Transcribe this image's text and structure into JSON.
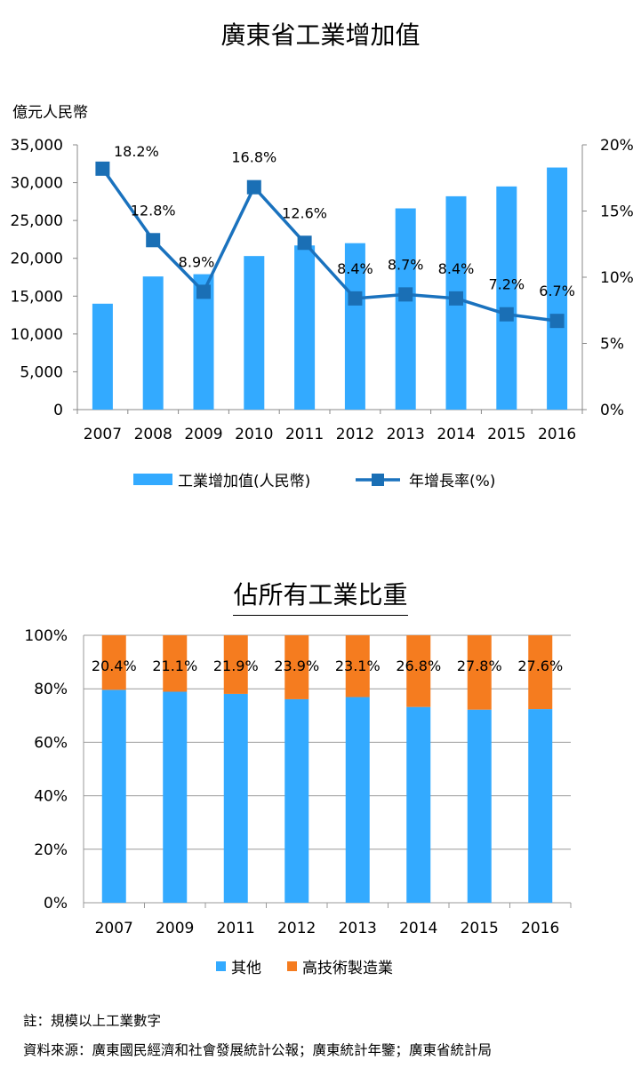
{
  "chart_data": [
    {
      "type": "bar",
      "title": "廣東省工業增加值",
      "ylabel": "億元人民幣",
      "categories": [
        "2007",
        "2008",
        "2009",
        "2010",
        "2011",
        "2012",
        "2013",
        "2014",
        "2015",
        "2016"
      ],
      "ylim": [
        0,
        35000
      ],
      "y2lim": [
        0,
        20
      ],
      "yticks": [
        "0",
        "5,000",
        "10,000",
        "15,000",
        "20,000",
        "25,000",
        "30,000",
        "35,000"
      ],
      "y2ticks": [
        "0%",
        "5%",
        "10%",
        "15%",
        "20%"
      ],
      "series": [
        {
          "name": "工業增加值(人民幣)",
          "type": "bar",
          "axis": "left",
          "color": "#33aaff",
          "values": [
            14000,
            17600,
            17900,
            20300,
            21700,
            22000,
            26600,
            28200,
            29500,
            32000
          ]
        },
        {
          "name": "年增長率(%)",
          "type": "line",
          "axis": "right",
          "color": "#1a72be",
          "marker_color": "#1a6fb5",
          "values": [
            18.2,
            12.8,
            8.9,
            16.8,
            12.6,
            8.4,
            8.7,
            8.4,
            7.2,
            6.7
          ],
          "labels": [
            "18.2%",
            "12.8%",
            "8.9%",
            "16.8%",
            "12.6%",
            "8.4%",
            "8.7%",
            "8.4%",
            "7.2%",
            "6.7%"
          ]
        }
      ],
      "legend": "bottom"
    },
    {
      "type": "bar",
      "stacked": true,
      "title": "佔所有工業比重",
      "categories": [
        "2007",
        "2009",
        "2011",
        "2012",
        "2013",
        "2014",
        "2015",
        "2016"
      ],
      "ylim": [
        0,
        100
      ],
      "yticks": [
        "0%",
        "20%",
        "40%",
        "60%",
        "80%",
        "100%"
      ],
      "grid": true,
      "series": [
        {
          "name": "其他",
          "color": "#33aaff",
          "values": [
            79.6,
            78.9,
            78.1,
            76.1,
            76.9,
            73.2,
            72.2,
            72.4
          ]
        },
        {
          "name": "高技術製造業",
          "color": "#f57c1f",
          "values": [
            20.4,
            21.1,
            21.9,
            23.9,
            23.1,
            26.8,
            27.8,
            27.6
          ],
          "labels": [
            "20.4%",
            "21.1%",
            "21.9%",
            "23.9%",
            "23.1%",
            "26.8%",
            "27.8%",
            "27.6%"
          ]
        }
      ],
      "legend": "bottom"
    }
  ],
  "notes": {
    "note": "註：規模以上工業數字",
    "source": "資料來源：廣東國民經濟和社會發展統計公報；廣東統計年鑒；廣東省統計局"
  }
}
